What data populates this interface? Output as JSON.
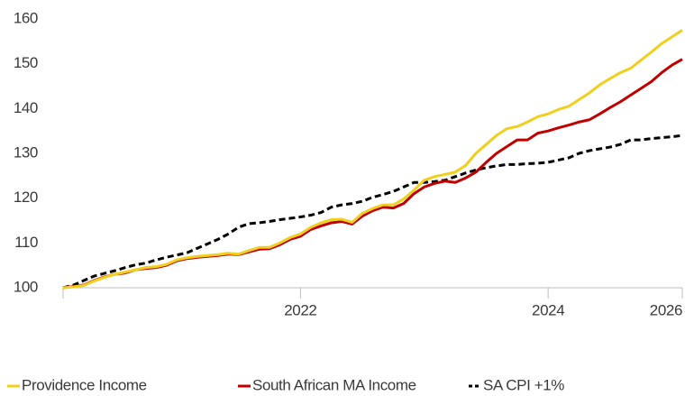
{
  "chart_data": {
    "type": "line",
    "categories": [
      null,
      null,
      null,
      null,
      null,
      null,
      null,
      null,
      null,
      null,
      null,
      null,
      null,
      null,
      null,
      null,
      null,
      null,
      null,
      null,
      null,
      null,
      null,
      "2022",
      null,
      null,
      null,
      null,
      null,
      null,
      null,
      null,
      null,
      null,
      null,
      null,
      null,
      null,
      null,
      null,
      null,
      null,
      null,
      null,
      null,
      null,
      null,
      "2024",
      null,
      null,
      null,
      null,
      null,
      null,
      null,
      null,
      null,
      null,
      null,
      null,
      "2026"
    ],
    "series": [
      {
        "name": "Providence Income",
        "color": "#f0d01c",
        "dashed": false,
        "values": [
          100,
          100.2,
          100.5,
          101.5,
          102.3,
          103,
          103.5,
          104,
          104.5,
          104.7,
          105.2,
          106.2,
          106.7,
          107,
          107.2,
          107.4,
          107.7,
          107.5,
          108.3,
          109,
          109,
          110,
          111.2,
          112,
          113.5,
          114.5,
          115.2,
          115.3,
          114.6,
          116.6,
          117.7,
          118.5,
          118.5,
          119.8,
          121.8,
          124,
          124.8,
          125.3,
          125.8,
          127.3,
          130,
          132,
          134,
          135.5,
          136,
          137,
          138.2,
          138.8,
          139.8,
          140.5,
          142,
          143.5,
          145.3,
          146.7,
          148,
          149,
          150.8,
          152.6,
          154.5,
          156,
          157.5
        ]
      },
      {
        "name": "South African MA Income",
        "color": "#c00000",
        "dashed": false,
        "values": [
          100,
          100.3,
          100.6,
          101.6,
          102.4,
          103,
          103.3,
          104,
          104.3,
          104.5,
          105,
          106,
          106.5,
          106.8,
          107,
          107.2,
          107.5,
          107.4,
          108,
          108.6,
          108.7,
          109.6,
          110.8,
          111.5,
          113,
          113.8,
          114.5,
          114.8,
          114.2,
          116,
          117.2,
          118,
          117.8,
          118.8,
          121,
          122.5,
          123.3,
          123.8,
          123.5,
          124.5,
          125.8,
          128,
          130,
          131.5,
          133,
          133,
          134.5,
          135,
          135.7,
          136.3,
          137,
          137.5,
          138.8,
          140.2,
          141.5,
          143,
          144.5,
          146,
          148,
          149.7,
          151
        ]
      },
      {
        "name": "SA CPI +1%",
        "color": "#000000",
        "dashed": true,
        "values": [
          100,
          100.6,
          101.6,
          102.6,
          103.2,
          103.8,
          104.5,
          105.1,
          105.5,
          106.2,
          106.8,
          107.3,
          107.8,
          108.8,
          109.8,
          110.8,
          112,
          113.5,
          114.3,
          114.5,
          114.8,
          115.2,
          115.5,
          115.8,
          116.2,
          116.8,
          118,
          118.5,
          118.8,
          119.3,
          120.2,
          120.8,
          121.5,
          122.5,
          123.5,
          123.5,
          123.7,
          124,
          124.8,
          125.6,
          126.3,
          126.8,
          127.2,
          127.5,
          127.5,
          127.7,
          127.8,
          128,
          128.5,
          129,
          130,
          130.6,
          131,
          131.4,
          132,
          133,
          133,
          133.3,
          133.5,
          133.7,
          134
        ]
      }
    ],
    "ylim": [
      100,
      160
    ],
    "yticks": [
      100,
      110,
      120,
      130,
      140,
      150,
      160
    ],
    "grid": false,
    "legend": "bottom"
  }
}
